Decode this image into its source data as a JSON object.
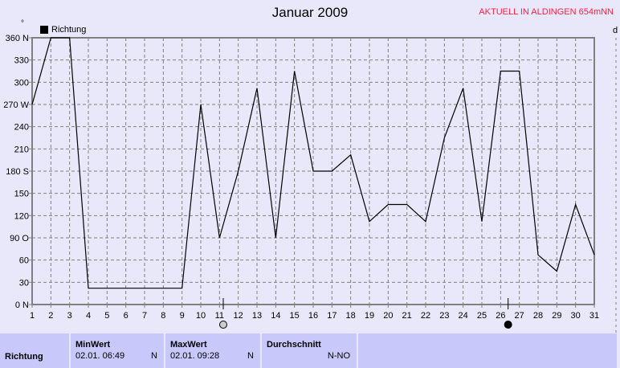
{
  "header": {
    "title": "Januar 2009",
    "badge": "AKTUELL IN ALDINGEN 654mNN",
    "unit": "°",
    "right_label": "d"
  },
  "chart_data": {
    "type": "line",
    "title": "Januar 2009",
    "series": [
      {
        "name": "Richtung",
        "color": "#000000",
        "x": [
          1,
          2,
          3,
          4,
          5,
          6,
          7,
          8,
          9,
          10,
          11,
          12,
          13,
          14,
          15,
          16,
          17,
          18,
          19,
          20,
          21,
          22,
          23,
          24,
          25,
          26,
          27,
          28,
          29,
          30,
          31
        ],
        "values": [
          270,
          360,
          360,
          22,
          22,
          22,
          22,
          22,
          22,
          270,
          90,
          180,
          292,
          90,
          315,
          180,
          180,
          202,
          112,
          135,
          135,
          112,
          225,
          292,
          112,
          315,
          315,
          67,
          45,
          135,
          67
        ]
      }
    ],
    "xlim": [
      1,
      31
    ],
    "ylim": [
      0,
      360
    ],
    "xticks": [
      "1",
      "2",
      "3",
      "4",
      "5",
      "6",
      "7",
      "8",
      "9",
      "10",
      "11",
      "12",
      "13",
      "14",
      "15",
      "16",
      "17",
      "18",
      "19",
      "20",
      "21",
      "22",
      "23",
      "24",
      "25",
      "26",
      "27",
      "28",
      "29",
      "30",
      "31"
    ],
    "yticks": [
      {
        "v": 0,
        "l": "0  N"
      },
      {
        "v": 30,
        "l": "30"
      },
      {
        "v": 60,
        "l": "60"
      },
      {
        "v": 90,
        "l": "90  O"
      },
      {
        "v": 120,
        "l": "120"
      },
      {
        "v": 150,
        "l": "150"
      },
      {
        "v": 180,
        "l": "180 S"
      },
      {
        "v": 210,
        "l": "210"
      },
      {
        "v": 240,
        "l": "240"
      },
      {
        "v": 270,
        "l": "270 W"
      },
      {
        "v": 300,
        "l": "300"
      },
      {
        "v": 330,
        "l": "330"
      },
      {
        "v": 360,
        "l": "360 N"
      }
    ],
    "grid": true,
    "legend": "top-left",
    "moon_markers": [
      {
        "day": 11.2,
        "phase": "full-moon"
      },
      {
        "day": 26.4,
        "phase": "new-moon"
      }
    ]
  },
  "panel": {
    "row_label": "Richtung",
    "cols": [
      {
        "header": "MinWert",
        "date": "02.01.  06:49",
        "val": "N"
      },
      {
        "header": "MaxWert",
        "date": "02.01.  09:28",
        "val": "N"
      },
      {
        "header": "Durchschnitt",
        "date": "",
        "val": "N-NO"
      }
    ]
  }
}
